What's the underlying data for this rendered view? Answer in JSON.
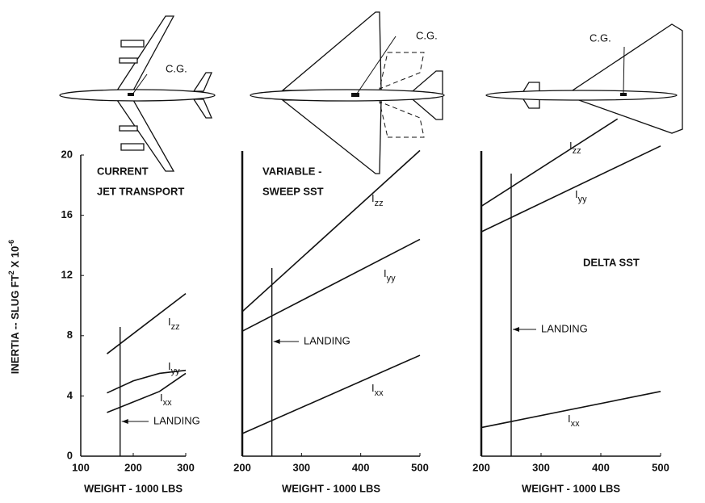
{
  "chart_data": [
    {
      "type": "line",
      "title": [
        "CURRENT",
        "JET TRANSPORT"
      ],
      "cg_label": "C.G.",
      "y_label": [
        "INERTIA -- SLUG FT",
        "2",
        " X 10",
        "-6"
      ],
      "x_label": "WEIGHT - 1000 LBS",
      "xlim": [
        100,
        300
      ],
      "xticks": [
        100,
        200,
        300
      ],
      "ylim": [
        0,
        20
      ],
      "yticks": [
        0,
        4,
        8,
        12,
        16,
        20
      ],
      "landing": {
        "x": 175,
        "label": "LANDING"
      },
      "series": [
        {
          "name": "Izz",
          "color": "#111111",
          "x": [
            150,
            300
          ],
          "values": [
            6.8,
            10.8
          ]
        },
        {
          "name": "Iyy",
          "color": "#111111",
          "x": [
            150,
            200,
            250,
            300
          ],
          "values": [
            4.2,
            5.0,
            5.5,
            5.7
          ]
        },
        {
          "name": "Ixx",
          "color": "#111111",
          "x": [
            150,
            200,
            250,
            300
          ],
          "values": [
            2.9,
            3.6,
            4.3,
            5.5
          ]
        }
      ]
    },
    {
      "type": "line",
      "title": [
        "VARIABLE -",
        "SWEEP SST"
      ],
      "cg_label": "C.G.",
      "x_label": "WEIGHT - 1000 LBS",
      "xlim": [
        200,
        500
      ],
      "xticks": [
        200,
        300,
        400,
        500
      ],
      "ylim": [
        0,
        20
      ],
      "landing": {
        "x": 250,
        "label": "LANDING"
      },
      "series": [
        {
          "name": "Izz",
          "color": "#111111",
          "x": [
            200,
            500
          ],
          "values": [
            9.6,
            20.3
          ]
        },
        {
          "name": "Iyy",
          "color": "#111111",
          "x": [
            200,
            500
          ],
          "values": [
            8.3,
            14.4
          ]
        },
        {
          "name": "Ixx",
          "color": "#111111",
          "x": [
            200,
            500
          ],
          "values": [
            1.5,
            6.7
          ]
        }
      ]
    },
    {
      "type": "line",
      "title": [
        "DELTA SST"
      ],
      "cg_label": "C.G.",
      "x_label": "WEIGHT - 1000 LBS",
      "xlim": [
        200,
        500
      ],
      "xticks": [
        200,
        300,
        400,
        500
      ],
      "ylim": [
        0,
        20
      ],
      "landing": {
        "x": 250,
        "label": "LANDING"
      },
      "series": [
        {
          "name": "Izz",
          "color": "#111111",
          "x": [
            200,
            428
          ],
          "values": [
            16.6,
            22.4
          ]
        },
        {
          "name": "Iyy",
          "color": "#111111",
          "x": [
            200,
            500
          ],
          "values": [
            14.9,
            20.6
          ]
        },
        {
          "name": "Ixx",
          "color": "#111111",
          "x": [
            200,
            500
          ],
          "values": [
            1.9,
            4.3
          ]
        }
      ]
    }
  ]
}
